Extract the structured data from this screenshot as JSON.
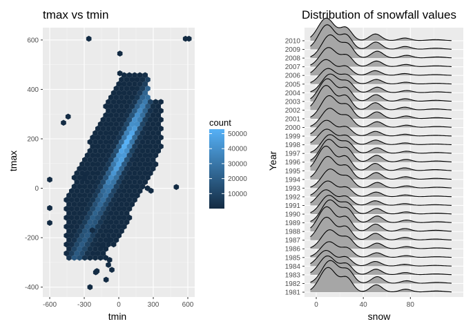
{
  "chart_data": [
    {
      "type": "hexbin",
      "title": "tmax vs tmin",
      "xlabel": "tmin",
      "ylabel": "tmax",
      "xlim": [
        -660,
        660
      ],
      "ylim": [
        -440,
        650
      ],
      "x_ticks": [
        -600,
        -300,
        0,
        300,
        600
      ],
      "y_ticks": [
        -400,
        -200,
        0,
        200,
        400,
        600
      ],
      "grid": true,
      "legend_title": "count",
      "legend_placement": "right",
      "legend_ticks": [
        10000,
        20000,
        30000,
        40000,
        50000
      ],
      "legend_tick_labels": [
        "10000",
        "20000",
        "30000",
        "40000",
        "50000"
      ],
      "color_low": "#132B43",
      "color_high": "#56B1F7",
      "count_range": [
        1,
        53000
      ],
      "core_line": {
        "tmin_start": -400,
        "tmin_end": 250,
        "slope": 1.05,
        "intercept": 110
      },
      "points": [
        [
          -260,
          605
        ],
        [
          580,
          605
        ],
        [
          610,
          605
        ],
        [
          10,
          545
        ],
        [
          10,
          465
        ],
        [
          -440,
          290
        ],
        [
          -480,
          265
        ],
        [
          -290,
          55
        ],
        [
          -300,
          40
        ],
        [
          -600,
          35
        ],
        [
          -600,
          -80
        ],
        [
          -600,
          -140
        ],
        [
          500,
          5
        ],
        [
          250,
          0
        ],
        [
          280,
          -10
        ],
        [
          -230,
          -170
        ],
        [
          -80,
          -210
        ],
        [
          -140,
          -230
        ],
        [
          -80,
          -290
        ],
        [
          -200,
          -340
        ],
        [
          -90,
          -310
        ],
        [
          -110,
          -370
        ],
        [
          -250,
          -400
        ],
        [
          -190,
          -335
        ],
        [
          -60,
          -330
        ]
      ]
    },
    {
      "type": "ridgeline",
      "title": "Distribution of snowfall values",
      "xlabel": "snow",
      "ylabel": "Year",
      "x_ticks": [
        0,
        40,
        80
      ],
      "xlim": [
        -10,
        125
      ],
      "grid": true,
      "years": [
        "1981",
        "1982",
        "1983",
        "1984",
        "1985",
        "1986",
        "1987",
        "1988",
        "1989",
        "1990",
        "1991",
        "1992",
        "1993",
        "1994",
        "1995",
        "1996",
        "1997",
        "1998",
        "1999",
        "2000",
        "2001",
        "2002",
        "2003",
        "2004",
        "2005",
        "2006",
        "2007",
        "2008",
        "2009",
        "2010"
      ],
      "density_peaks": [
        {
          "center": 10,
          "width": 7,
          "height": 1.0
        },
        {
          "center": 26,
          "width": 5,
          "height": 0.55
        },
        {
          "center": 51,
          "width": 5,
          "height": 0.3
        },
        {
          "center": 76,
          "width": 5,
          "height": 0.12
        },
        {
          "center": 102,
          "width": 7,
          "height": 0.05
        }
      ],
      "fill_color": "#a6a6a6",
      "line_color": "#000000"
    }
  ]
}
